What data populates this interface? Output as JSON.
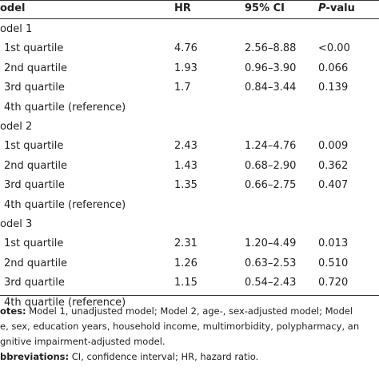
{
  "header": {
    "label": "odel",
    "hr": "HR",
    "ci": "95% CI",
    "p_italic": "P",
    "p_rest": "-valu"
  },
  "rows": [
    {
      "label": "odel 1",
      "section": true
    },
    {
      "label": "1st quartile",
      "hr": "4.76",
      "ci": "2.56–8.88",
      "p": "<0.00"
    },
    {
      "label": "2nd quartile",
      "hr": "1.93",
      "ci": "0.96–3.90",
      "p": "0.066"
    },
    {
      "label": "3rd quartile",
      "hr": "1.7",
      "ci": "0.84–3.44",
      "p": "0.139"
    },
    {
      "label": "4th quartile (reference)"
    },
    {
      "label": "odel 2",
      "section": true
    },
    {
      "label": "1st quartile",
      "hr": "2.43",
      "ci": "1.24–4.76",
      "p": "0.009"
    },
    {
      "label": "2nd quartile",
      "hr": "1.43",
      "ci": "0.68–2.90",
      "p": "0.362"
    },
    {
      "label": "3rd quartile",
      "hr": "1.35",
      "ci": "0.66–2.75",
      "p": "0.407"
    },
    {
      "label": "4th quartile (reference)"
    },
    {
      "label": "odel 3",
      "section": true
    },
    {
      "label": "1st quartile",
      "hr": "2.31",
      "ci": "1.20–4.49",
      "p": "0.013"
    },
    {
      "label": "2nd quartile",
      "hr": "1.26",
      "ci": "0.63–2.53",
      "p": "0.510"
    },
    {
      "label": "3rd quartile",
      "hr": "1.15",
      "ci": "0.54–2.43",
      "p": "0.720"
    },
    {
      "label": "4th quartile (reference)"
    }
  ],
  "notes": {
    "label": "otes:",
    "lines": [
      " Model 1, unadjusted model; Model 2, age-, sex-adjusted model; Model",
      "e, sex, education years, household income, multimorbidity, polypharmacy, an",
      "gnitive impairment-adjusted model."
    ]
  },
  "abbreviations": {
    "label": "bbreviations:",
    "text": " CI, confidence interval; HR, hazard ratio."
  }
}
